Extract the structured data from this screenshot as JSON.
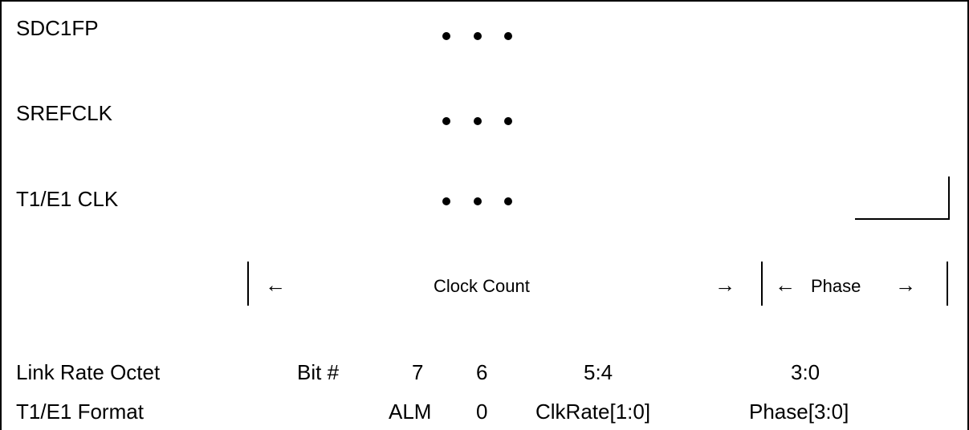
{
  "signals": [
    {
      "name": "SDC1FP"
    },
    {
      "name": "SREFCLK"
    },
    {
      "name": "T1/E1 CLK"
    }
  ],
  "ellipsis_icon": "three-dots",
  "fields": {
    "clock_count": "Clock Count",
    "phase": "Phase",
    "left_arrow": "←",
    "right_arrow": "→"
  },
  "table": {
    "row1": {
      "label": "Link Rate Octet",
      "bit_label": "Bit #",
      "cells": [
        "7",
        "6",
        "5:4",
        "3:0"
      ]
    },
    "row2": {
      "label": "T1/E1 Format",
      "cells": [
        "ALM",
        "0",
        "ClkRate[1:0]",
        "Phase[3:0]"
      ]
    }
  }
}
